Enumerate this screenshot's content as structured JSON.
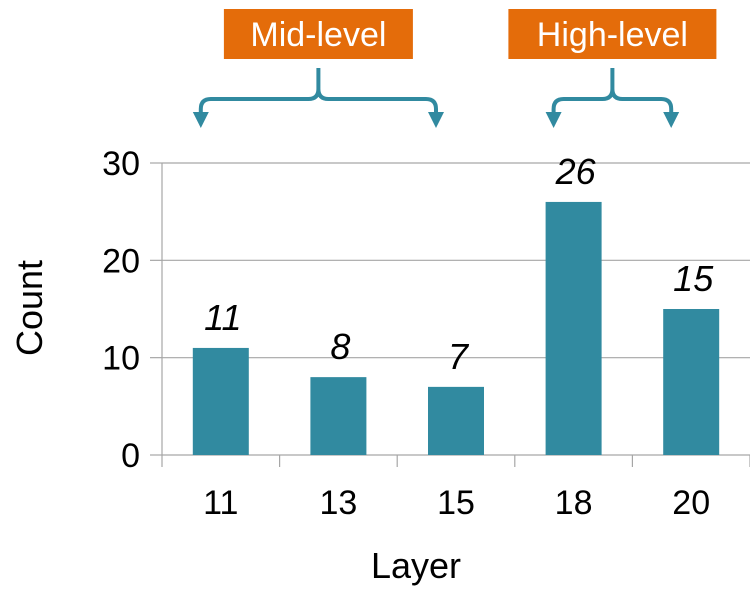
{
  "chart_data": {
    "type": "bar",
    "categories": [
      "11",
      "13",
      "15",
      "18",
      "20"
    ],
    "values": [
      11,
      8,
      7,
      26,
      15
    ],
    "data_labels": [
      "11",
      "8",
      "7",
      "26",
      "15"
    ],
    "title": "",
    "xlabel": "Layer",
    "ylabel": "Count",
    "ylim": [
      0,
      30
    ],
    "yticks": [
      "0",
      "10",
      "20",
      "30"
    ],
    "ytick_values": [
      0,
      10,
      20,
      30
    ],
    "grid": true,
    "legend": "none",
    "bar_color": "#318AA0",
    "annotations": [
      {
        "label": "Mid-level",
        "from_category": "11",
        "to_category": "15"
      },
      {
        "label": "High-level",
        "from_category": "18",
        "to_category": "20"
      }
    ],
    "annotation_box_color": "#E46C0A",
    "annotation_arrow_color": "#318AA0",
    "gridline_color": "#A6A6A6"
  }
}
